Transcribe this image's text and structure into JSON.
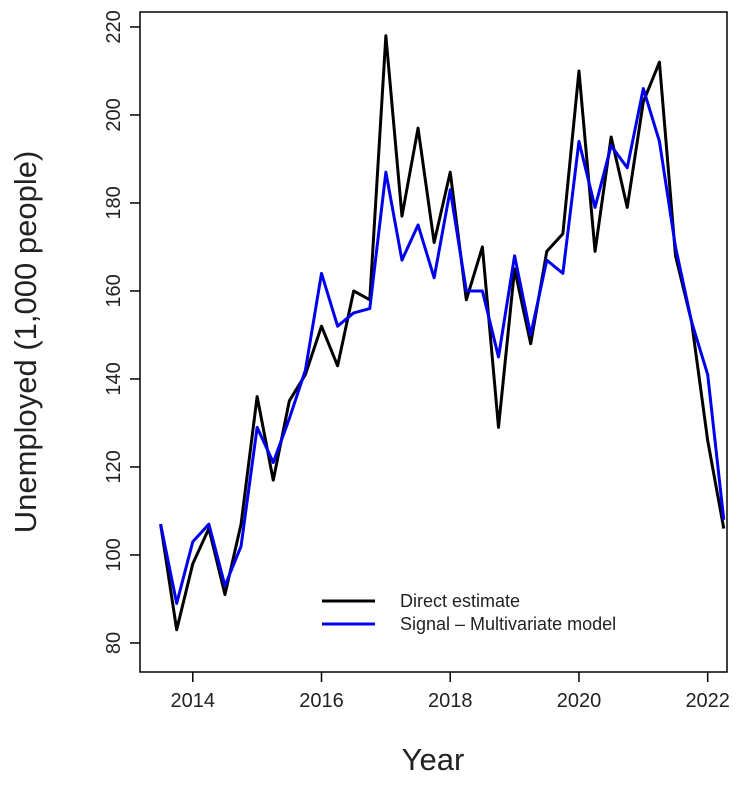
{
  "chart_data": {
    "type": "line",
    "x_label": "Year",
    "y_label": "Unemployed (1,000 people)",
    "x": [
      2013.5,
      2013.75,
      2014,
      2014.25,
      2014.5,
      2014.75,
      2015,
      2015.25,
      2015.5,
      2015.75,
      2016,
      2016.25,
      2016.5,
      2016.75,
      2017,
      2017.25,
      2017.5,
      2017.75,
      2018,
      2018.25,
      2018.5,
      2018.75,
      2019,
      2019.25,
      2019.5,
      2019.75,
      2020,
      2020.25,
      2020.5,
      2020.75,
      2021,
      2021.25,
      2021.5,
      2021.75,
      2022,
      2022.25
    ],
    "series": [
      {
        "name": "Direct estimate",
        "color": "#000000",
        "values": [
          107,
          83,
          98,
          106,
          91,
          107,
          136,
          117,
          135,
          141,
          152,
          143,
          160,
          158,
          218,
          177,
          197,
          171,
          187,
          158,
          170,
          129,
          165,
          148,
          169,
          173,
          210,
          169,
          195,
          179,
          203,
          212,
          168,
          153,
          126,
          106
        ]
      },
      {
        "name": "Signal – Multivariate model",
        "color": "#0000ee",
        "values": [
          107,
          89,
          103,
          107,
          93,
          102,
          129,
          121,
          131,
          142,
          164,
          152,
          155,
          156,
          187,
          167,
          175,
          163,
          183,
          160,
          160,
          145,
          168,
          150,
          167,
          164,
          194,
          179,
          193,
          188,
          206,
          194,
          170,
          153,
          141,
          108
        ]
      }
    ],
    "xlim": [
      2013.18,
      2022.3
    ],
    "xticks": [
      2014,
      2016,
      2018,
      2020,
      2022
    ],
    "ylim": [
      73.4,
      223.4
    ],
    "yticks": [
      80,
      100,
      120,
      140,
      160,
      180,
      200,
      220
    ]
  }
}
